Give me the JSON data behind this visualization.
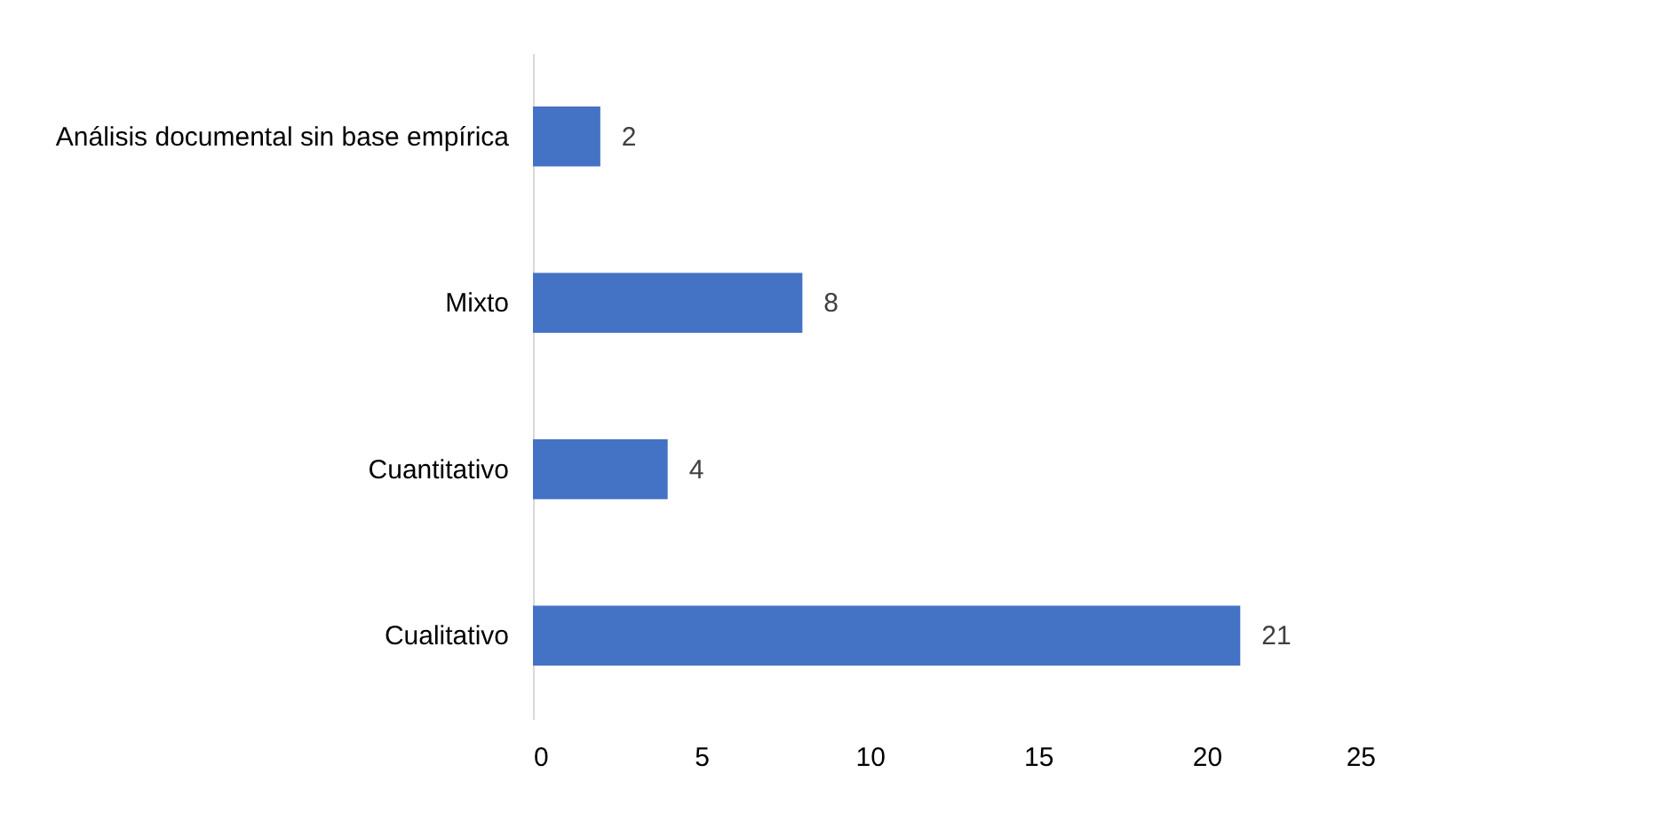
{
  "chart_data": {
    "type": "bar",
    "orientation": "horizontal",
    "categories": [
      "Análisis documental sin base empírica",
      "Mixto",
      "Cuantitativo",
      "Cualitativo"
    ],
    "values": [
      2,
      8,
      4,
      21
    ],
    "color": "#4472c4",
    "xlim": [
      0,
      25
    ],
    "xticks": [
      0,
      5,
      10,
      15,
      20,
      25
    ],
    "grid": false,
    "data_labels": true
  }
}
